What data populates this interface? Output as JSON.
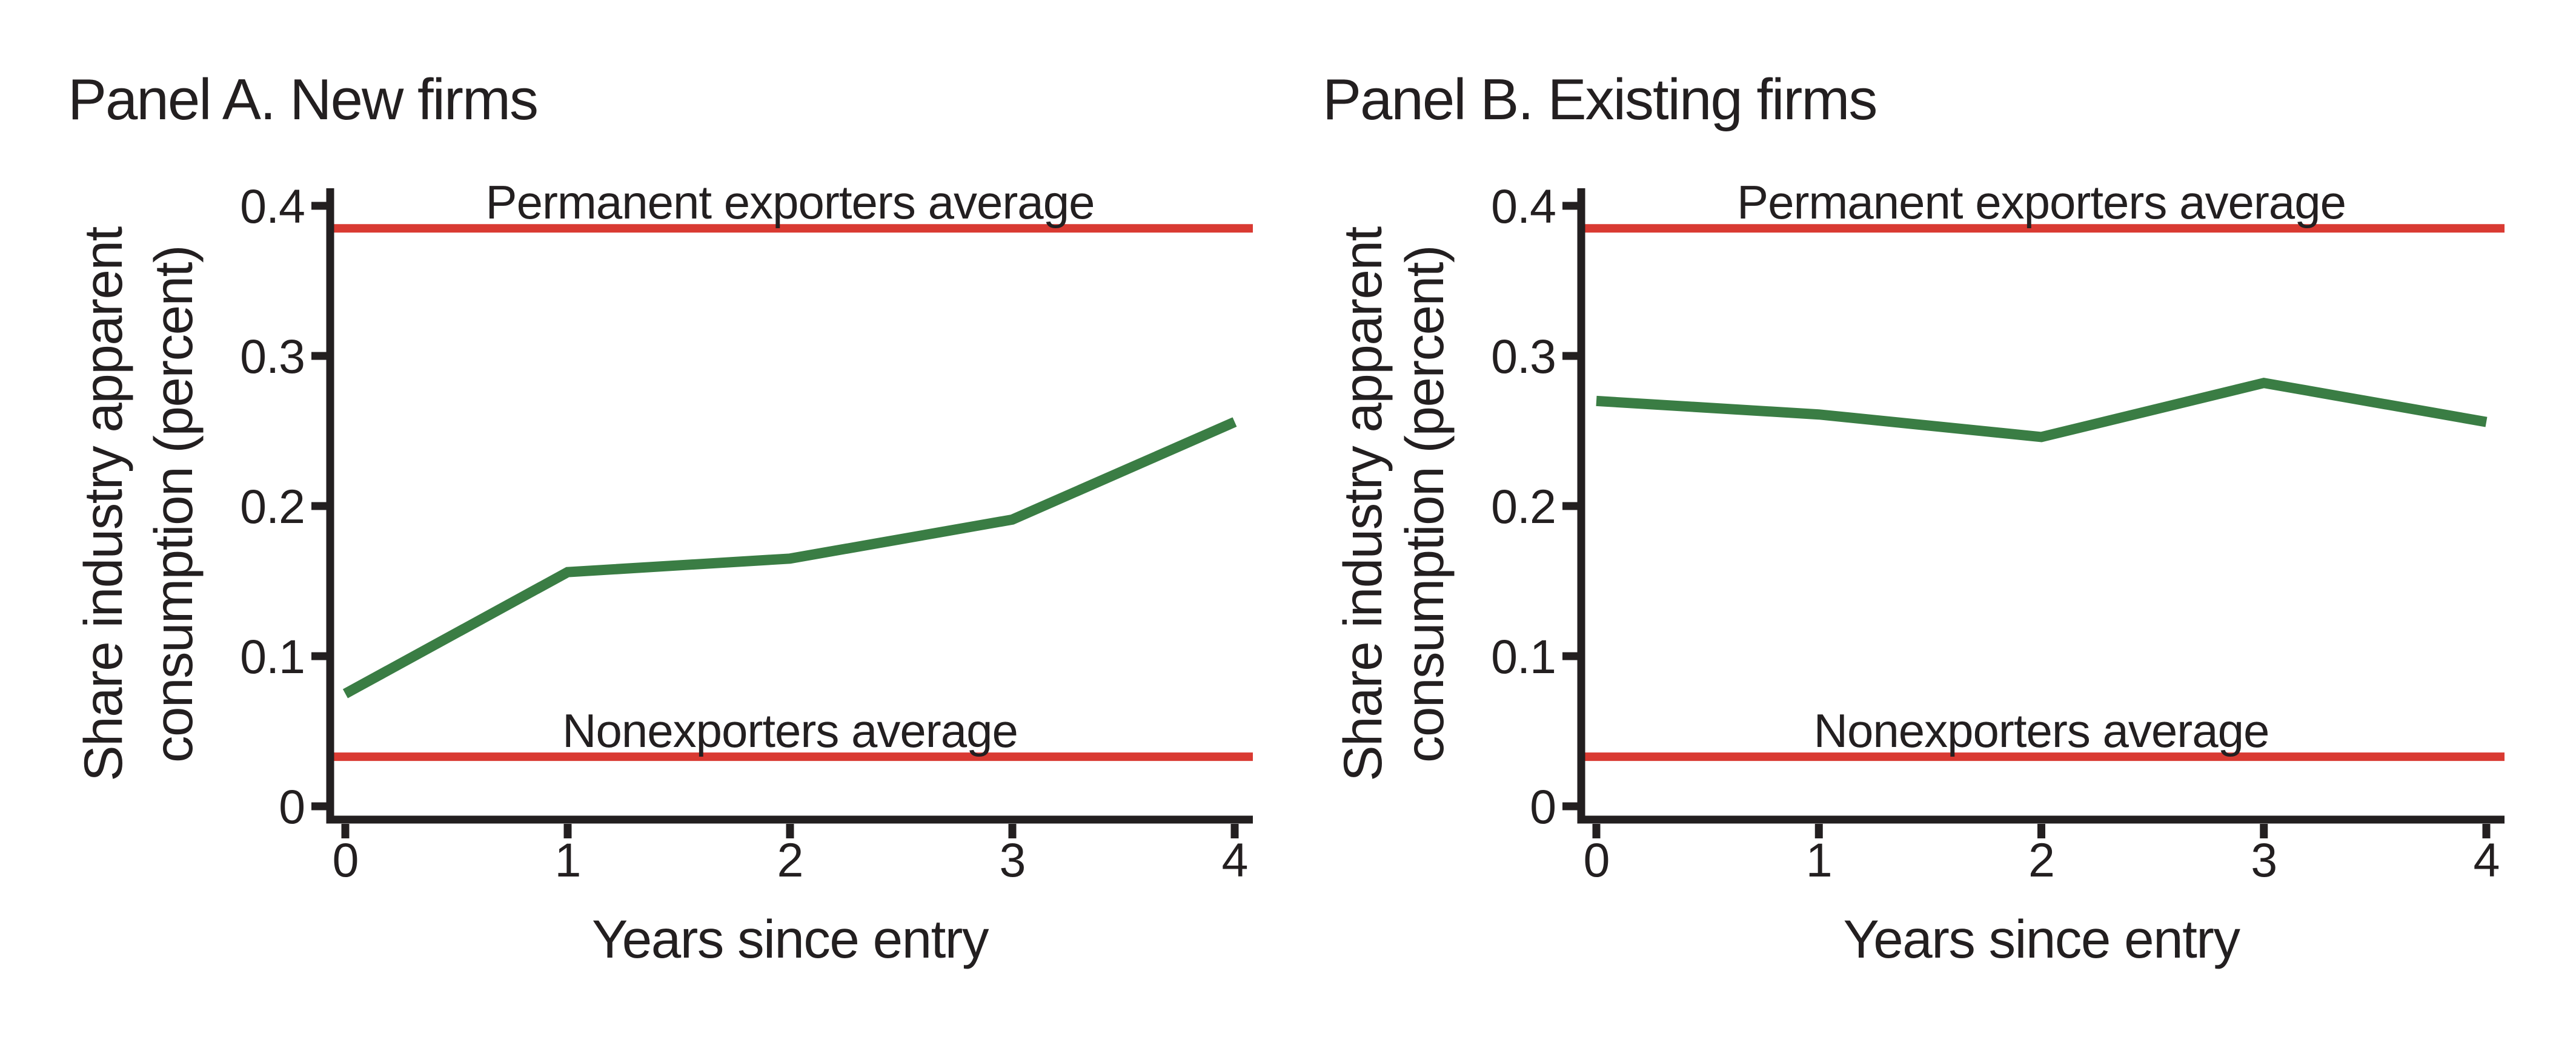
{
  "figure": {
    "background": "#ffffff",
    "text_color": "#231f20",
    "axis_color": "#231f20"
  },
  "chart_data": [
    {
      "panel": "A",
      "type": "line",
      "title": "Panel A. New firms",
      "xlabel": "Years since entry",
      "ylabel": "Share industry apparent consumption (percent)",
      "ylabel_lines": [
        "Share industry apparent",
        "consumption (percent)"
      ],
      "xlim": [
        0,
        4
      ],
      "ylim": [
        0,
        0.4
      ],
      "grid": false,
      "x": [
        0,
        1,
        2,
        3,
        4
      ],
      "xtick_labels": [
        "0",
        "1",
        "2",
        "3",
        "4"
      ],
      "yticks": [
        0,
        0.1,
        0.2,
        0.3,
        0.4
      ],
      "ytick_labels": [
        "0",
        "0.1",
        "0.2",
        "0.3",
        "0.4"
      ],
      "series": [
        {
          "color": "#3a7d44",
          "values": [
            0.075,
            0.156,
            0.165,
            0.191,
            0.256
          ]
        }
      ],
      "reference_lines": [
        {
          "label": "Permanent exporters average",
          "value": 0.385,
          "color": "#d93a32"
        },
        {
          "label": "Nonexporters average",
          "value": 0.033,
          "color": "#d93a32"
        }
      ]
    },
    {
      "panel": "B",
      "type": "line",
      "title": "Panel B. Existing firms",
      "xlabel": "Years since entry",
      "ylabel": "Share industry apparent consumption (percent)",
      "ylabel_lines": [
        "Share industry apparent",
        "consumption (percent)"
      ],
      "xlim": [
        0,
        4
      ],
      "ylim": [
        0,
        0.4
      ],
      "grid": false,
      "x": [
        0,
        1,
        2,
        3,
        4
      ],
      "xtick_labels": [
        "0",
        "1",
        "2",
        "3",
        "4"
      ],
      "yticks": [
        0,
        0.1,
        0.2,
        0.3,
        0.4
      ],
      "ytick_labels": [
        "0",
        "0.1",
        "0.2",
        "0.3",
        "0.4"
      ],
      "series": [
        {
          "color": "#3a7d44",
          "values": [
            0.27,
            0.261,
            0.246,
            0.282,
            0.256
          ]
        }
      ],
      "reference_lines": [
        {
          "label": "Permanent exporters average",
          "value": 0.385,
          "color": "#d93a32"
        },
        {
          "label": "Nonexporters average",
          "value": 0.033,
          "color": "#d93a32"
        }
      ]
    }
  ]
}
